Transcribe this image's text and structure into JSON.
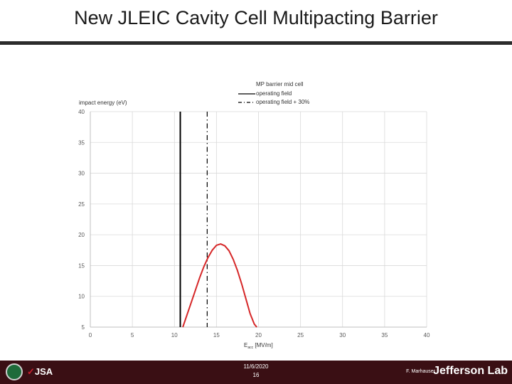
{
  "slide": {
    "title": "New JLEIC Cavity Cell Multipacting Barrier"
  },
  "footer": {
    "date": "11/6/2020",
    "page": "16",
    "author": "F. Marhauser",
    "brand": "Jefferson Lab",
    "org_logo_text": "JSA"
  },
  "colors": {
    "curve": "#d62728",
    "operating": "#000000",
    "grid": "#d9d9d9",
    "footer": "#3a0f14"
  },
  "chart_data": {
    "type": "line",
    "title": "",
    "ylabel": "impact energy (eV)",
    "xlabel": "E",
    "xlabel_sub": "acc",
    "xlabel_unit": " [MV/m]",
    "xlim": [
      0,
      40
    ],
    "ylim": [
      5,
      40
    ],
    "xticks": [
      0,
      5,
      10,
      15,
      20,
      25,
      30,
      35,
      40
    ],
    "yticks": [
      5,
      10,
      15,
      20,
      25,
      30,
      35,
      40
    ],
    "grid": true,
    "legend": {
      "position": "top-right",
      "title": "MP barrier mid cell",
      "entries": [
        "operating field",
        "operating field + 30%"
      ]
    },
    "series": [
      {
        "name": "MP barrier mid cell",
        "x": [
          11.0,
          11.5,
          12.0,
          12.5,
          13.0,
          13.5,
          14.0,
          14.5,
          15.0,
          15.5,
          16.0,
          16.5,
          17.0,
          17.5,
          18.0,
          18.5,
          19.0,
          19.5,
          19.8
        ],
        "y": [
          5.0,
          7.0,
          9.0,
          11.0,
          13.0,
          14.8,
          16.3,
          17.5,
          18.3,
          18.5,
          18.2,
          17.4,
          16.0,
          14.2,
          12.0,
          9.6,
          7.2,
          5.5,
          5.0
        ]
      }
    ],
    "vlines": [
      {
        "name": "operating field",
        "x": 10.7,
        "style": "solid"
      },
      {
        "name": "operating field + 30%",
        "x": 13.9,
        "style": "dashdot"
      }
    ]
  }
}
